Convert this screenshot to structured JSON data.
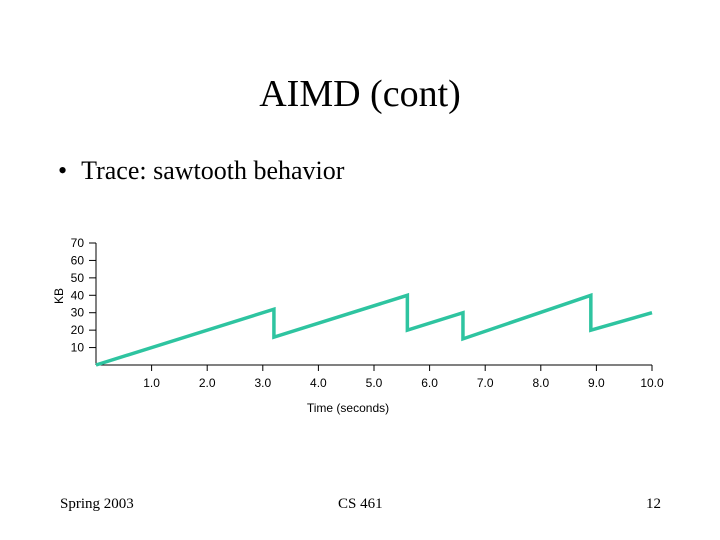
{
  "slide": {
    "title": "AIMD (cont)",
    "bullet_marker": "•",
    "bullet_text": "Trace: sawtooth behavior"
  },
  "footer": {
    "left": "Spring 2003",
    "center": "CS 461",
    "right": "12"
  },
  "chart_data": {
    "type": "line",
    "xlabel": "Time (seconds)",
    "ylabel": "KB",
    "xlim": [
      0,
      10.0
    ],
    "ylim": [
      0,
      70
    ],
    "x_ticks": [
      "1.0",
      "2.0",
      "3.0",
      "4.0",
      "5.0",
      "6.0",
      "7.0",
      "8.0",
      "9.0",
      "10.0"
    ],
    "x_tick_values": [
      1,
      2,
      3,
      4,
      5,
      6,
      7,
      8,
      9,
      10
    ],
    "y_ticks": [
      "70",
      "60",
      "50",
      "40",
      "30",
      "20",
      "10"
    ],
    "y_tick_values": [
      70,
      60,
      50,
      40,
      30,
      20,
      10
    ],
    "grid": false,
    "line_color": "#2ec4a0",
    "series": [
      {
        "x": [
          0,
          3.2,
          3.2,
          5.6,
          5.6,
          6.6,
          6.6,
          8.9,
          8.9,
          10.0
        ],
        "y": [
          0,
          32,
          16,
          40,
          20,
          30,
          15,
          40,
          20,
          30
        ]
      }
    ]
  }
}
